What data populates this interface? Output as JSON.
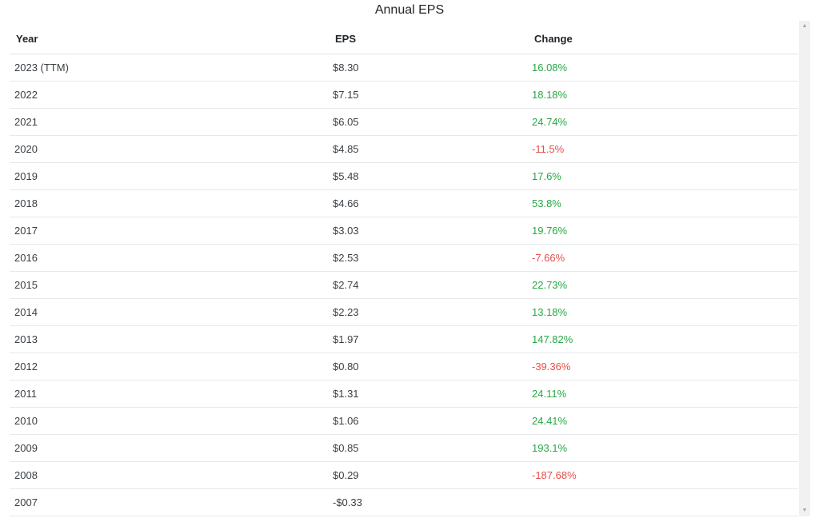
{
  "title": "Annual EPS",
  "columns": {
    "year": "Year",
    "eps": "EPS",
    "change": "Change"
  },
  "colors": {
    "positive": "#28a745",
    "negative": "#e3504b"
  },
  "scrollbar": {
    "up_icon": "scroll-up-arrow",
    "down_icon": "scroll-down-arrow"
  },
  "rows": [
    {
      "year": "2023 (TTM)",
      "eps": "$8.30",
      "change": "16.08%",
      "trend": "positive"
    },
    {
      "year": "2022",
      "eps": "$7.15",
      "change": "18.18%",
      "trend": "positive"
    },
    {
      "year": "2021",
      "eps": "$6.05",
      "change": "24.74%",
      "trend": "positive"
    },
    {
      "year": "2020",
      "eps": "$4.85",
      "change": "-11.5%",
      "trend": "negative"
    },
    {
      "year": "2019",
      "eps": "$5.48",
      "change": "17.6%",
      "trend": "positive"
    },
    {
      "year": "2018",
      "eps": "$4.66",
      "change": "53.8%",
      "trend": "positive"
    },
    {
      "year": "2017",
      "eps": "$3.03",
      "change": "19.76%",
      "trend": "positive"
    },
    {
      "year": "2016",
      "eps": "$2.53",
      "change": "-7.66%",
      "trend": "negative"
    },
    {
      "year": "2015",
      "eps": "$2.74",
      "change": "22.73%",
      "trend": "positive"
    },
    {
      "year": "2014",
      "eps": "$2.23",
      "change": "13.18%",
      "trend": "positive"
    },
    {
      "year": "2013",
      "eps": "$1.97",
      "change": "147.82%",
      "trend": "positive"
    },
    {
      "year": "2012",
      "eps": "$0.80",
      "change": "-39.36%",
      "trend": "negative"
    },
    {
      "year": "2011",
      "eps": "$1.31",
      "change": "24.11%",
      "trend": "positive"
    },
    {
      "year": "2010",
      "eps": "$1.06",
      "change": "24.41%",
      "trend": "positive"
    },
    {
      "year": "2009",
      "eps": "$0.85",
      "change": "193.1%",
      "trend": "positive"
    },
    {
      "year": "2008",
      "eps": "$0.29",
      "change": "-187.68%",
      "trend": "negative"
    },
    {
      "year": "2007",
      "eps": "-$0.33",
      "change": "",
      "trend": "none"
    }
  ]
}
